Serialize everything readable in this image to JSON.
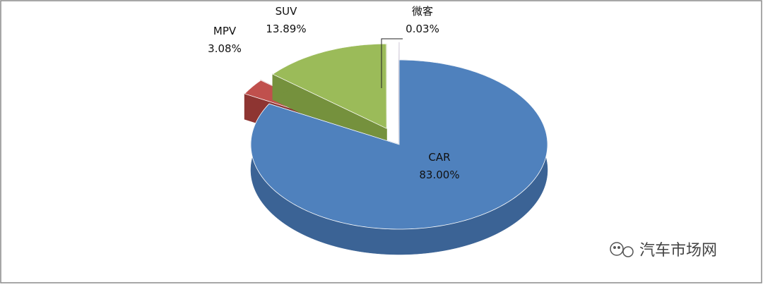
{
  "chart_data": {
    "type": "pie3d",
    "categories": [
      "CAR",
      "MPV",
      "SUV",
      "微客"
    ],
    "values": [
      83.0,
      3.08,
      13.89,
      0.03
    ],
    "value_labels": [
      "83.00%",
      "3.08%",
      "13.89%",
      "0.03%"
    ],
    "colors": [
      "#4f81bd",
      "#c0504d",
      "#9bbb59",
      "#8064a2"
    ],
    "side_colors": [
      "#3b6395",
      "#8e3532",
      "#75913d",
      "#5e4a7a"
    ]
  },
  "watermark": "汽车市场网"
}
